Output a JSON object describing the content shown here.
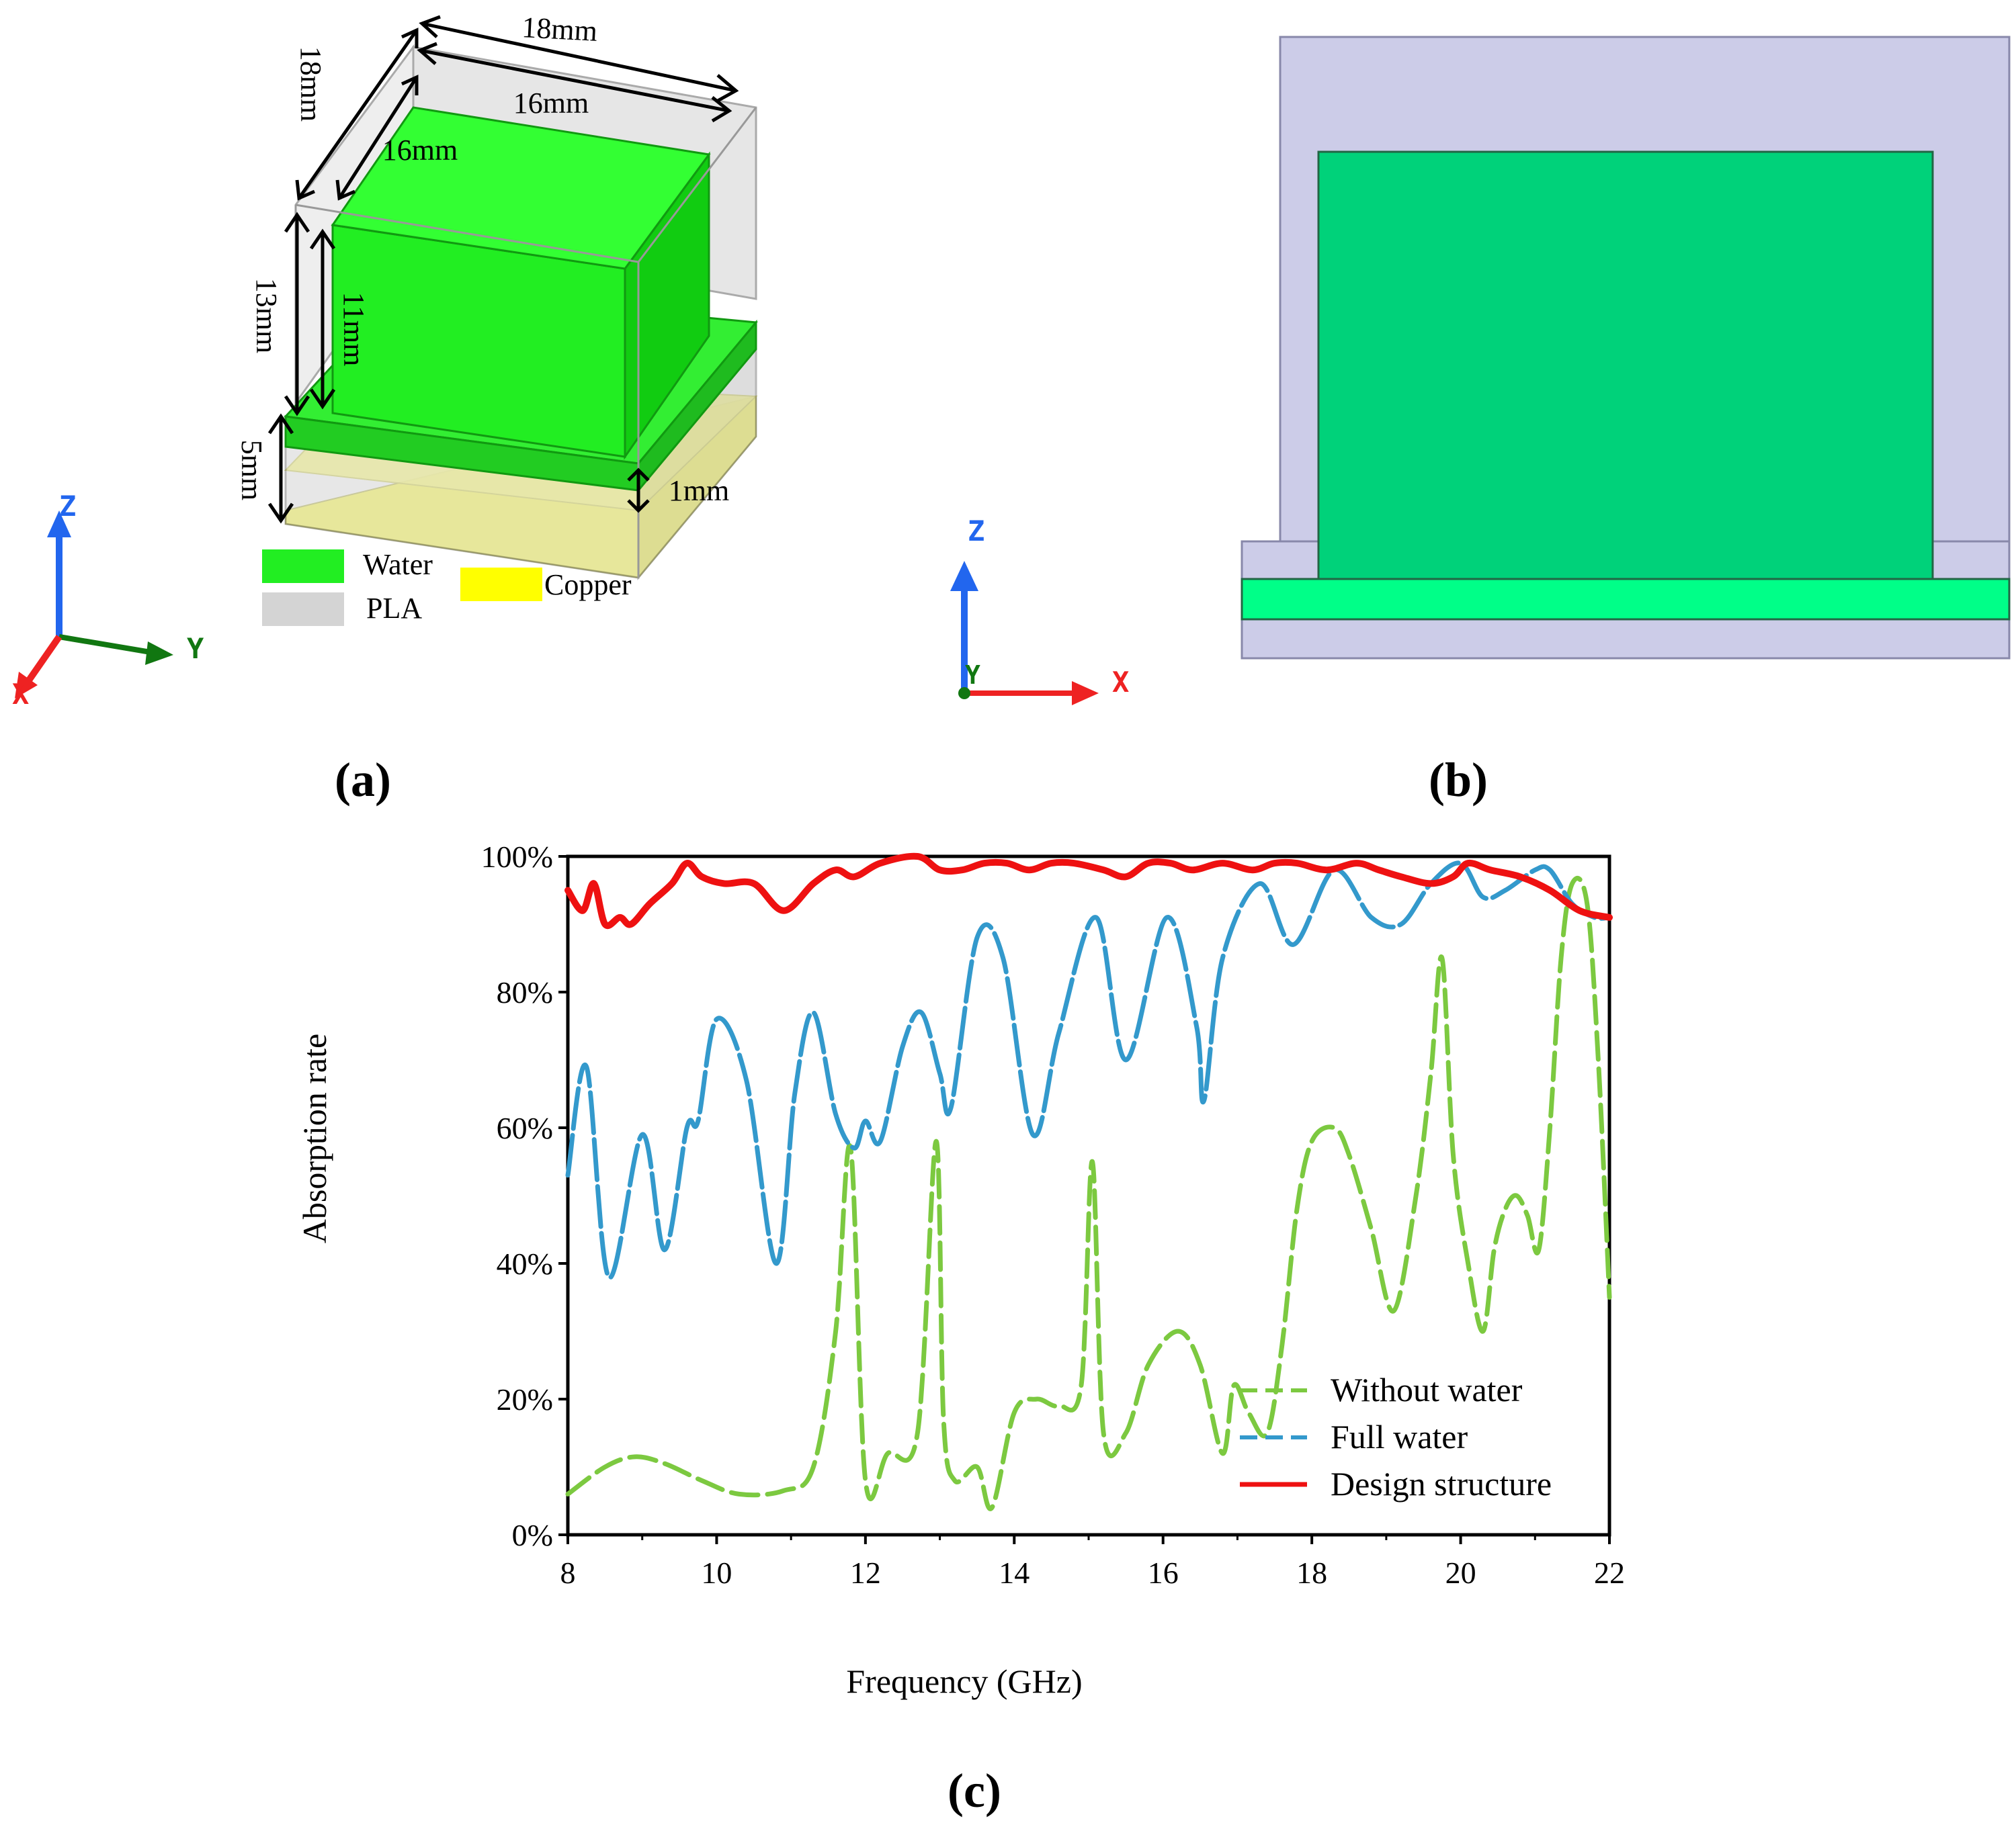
{
  "panel_a": {
    "label": "(a)",
    "dimensions": {
      "outer_width": "18mm",
      "outer_depth": "18mm",
      "inner_width": "16mm",
      "inner_depth": "16mm",
      "outer_height": "13mm",
      "inner_height": "11mm",
      "base_height": "5mm",
      "copper_gap": "1mm"
    },
    "legend": [
      {
        "label": "Water",
        "color": "#22ee22"
      },
      {
        "label": "PLA",
        "color": "#d4d4d4"
      },
      {
        "label": "Copper",
        "color": "#ffff00"
      }
    ],
    "axes": {
      "z": "Z",
      "y": "Y",
      "x": "X"
    }
  },
  "panel_b": {
    "label": "(b)",
    "axes": {
      "z": "Z",
      "y": "Y",
      "x": "X"
    },
    "colors": {
      "pla": "#cccce8",
      "water_box": "#00d27a",
      "water_layer": "#00ff88"
    }
  },
  "panel_c": {
    "label": "(c)"
  },
  "chart_data": {
    "type": "line",
    "title": "",
    "xlabel": "Frequency (GHz)",
    "ylabel": "Absorption rate",
    "xlim": [
      8,
      22
    ],
    "ylim": [
      0,
      100
    ],
    "xticks": [
      8,
      10,
      12,
      14,
      16,
      18,
      20,
      22
    ],
    "yticks": [
      0,
      20,
      40,
      60,
      80,
      100
    ],
    "ytick_labels": [
      "0%",
      "20%",
      "40%",
      "60%",
      "80%",
      "100%"
    ],
    "legend_position": "bottom-right",
    "series": [
      {
        "name": "Without water",
        "color": "#7cc940",
        "style": "dashed",
        "x": [
          8.0,
          8.5,
          8.9,
          9.3,
          9.8,
          10.3,
          10.9,
          11.3,
          11.6,
          11.8,
          12.0,
          12.3,
          12.7,
          12.95,
          13.05,
          13.2,
          13.5,
          13.7,
          14.0,
          14.3,
          14.6,
          14.9,
          15.05,
          15.2,
          15.5,
          15.8,
          16.2,
          16.5,
          16.8,
          16.95,
          17.15,
          17.4,
          17.6,
          17.8,
          18.0,
          18.3,
          18.5,
          18.8,
          19.1,
          19.4,
          19.6,
          19.75,
          19.9,
          20.1,
          20.3,
          20.45,
          20.6,
          20.75,
          20.9,
          21.05,
          21.2,
          21.35,
          21.5,
          21.7,
          21.85,
          22.0
        ],
        "y": [
          6,
          10,
          11.5,
          10.5,
          8,
          6,
          6.5,
          10,
          30,
          57,
          8,
          12,
          15,
          58,
          17,
          8,
          10,
          4,
          18,
          20,
          19,
          22,
          55,
          15,
          15,
          25,
          30,
          25,
          12,
          22,
          18,
          15,
          28,
          48,
          58,
          60,
          56,
          45,
          33,
          50,
          68,
          85,
          56,
          40,
          30,
          42,
          48,
          50,
          47,
          42,
          60,
          85,
          96,
          93,
          70,
          35
        ]
      },
      {
        "name": "Full water",
        "color": "#3399cc",
        "style": "dashed",
        "x": [
          8.0,
          8.25,
          8.55,
          9.0,
          9.3,
          9.6,
          9.75,
          10.0,
          10.4,
          10.8,
          11.05,
          11.3,
          11.6,
          11.85,
          12.0,
          12.2,
          12.5,
          12.75,
          13.0,
          13.15,
          13.5,
          13.85,
          14.25,
          14.6,
          15.1,
          15.5,
          16.05,
          16.45,
          16.55,
          16.8,
          17.3,
          17.75,
          18.3,
          18.8,
          19.2,
          19.6,
          20.0,
          20.3,
          20.6,
          21.0,
          21.2,
          21.5,
          21.8,
          22.0
        ],
        "y": [
          53,
          69,
          38,
          59,
          42,
          60,
          61,
          76,
          67,
          40,
          65,
          77,
          62,
          57,
          61,
          58,
          72,
          77,
          68,
          63,
          88,
          85,
          59,
          74,
          91,
          70,
          91,
          75,
          64,
          85,
          96,
          87,
          98,
          91,
          90,
          96,
          99,
          94,
          95,
          98,
          98,
          93,
          91,
          91
        ]
      },
      {
        "name": "Design structure",
        "color": "#ee1111",
        "style": "solid",
        "x": [
          8.0,
          8.2,
          8.35,
          8.5,
          8.7,
          8.85,
          9.1,
          9.4,
          9.6,
          9.8,
          10.1,
          10.5,
          10.9,
          11.3,
          11.6,
          11.85,
          12.2,
          12.7,
          13.0,
          13.3,
          13.6,
          13.9,
          14.2,
          14.5,
          14.8,
          15.2,
          15.5,
          15.8,
          16.1,
          16.4,
          16.8,
          17.2,
          17.5,
          17.8,
          18.2,
          18.6,
          18.9,
          19.2,
          19.6,
          19.9,
          20.1,
          20.4,
          20.8,
          21.2,
          21.6,
          22.0
        ],
        "y": [
          95,
          92,
          96,
          90,
          91,
          90,
          93,
          96,
          99,
          97,
          96,
          96,
          92,
          96,
          98,
          97,
          99,
          100,
          98,
          98,
          99,
          99,
          98,
          99,
          99,
          98,
          97,
          99,
          99,
          98,
          99,
          98,
          99,
          99,
          98,
          99,
          98,
          97,
          96,
          97,
          99,
          98,
          97,
          95,
          92,
          91
        ]
      }
    ]
  }
}
